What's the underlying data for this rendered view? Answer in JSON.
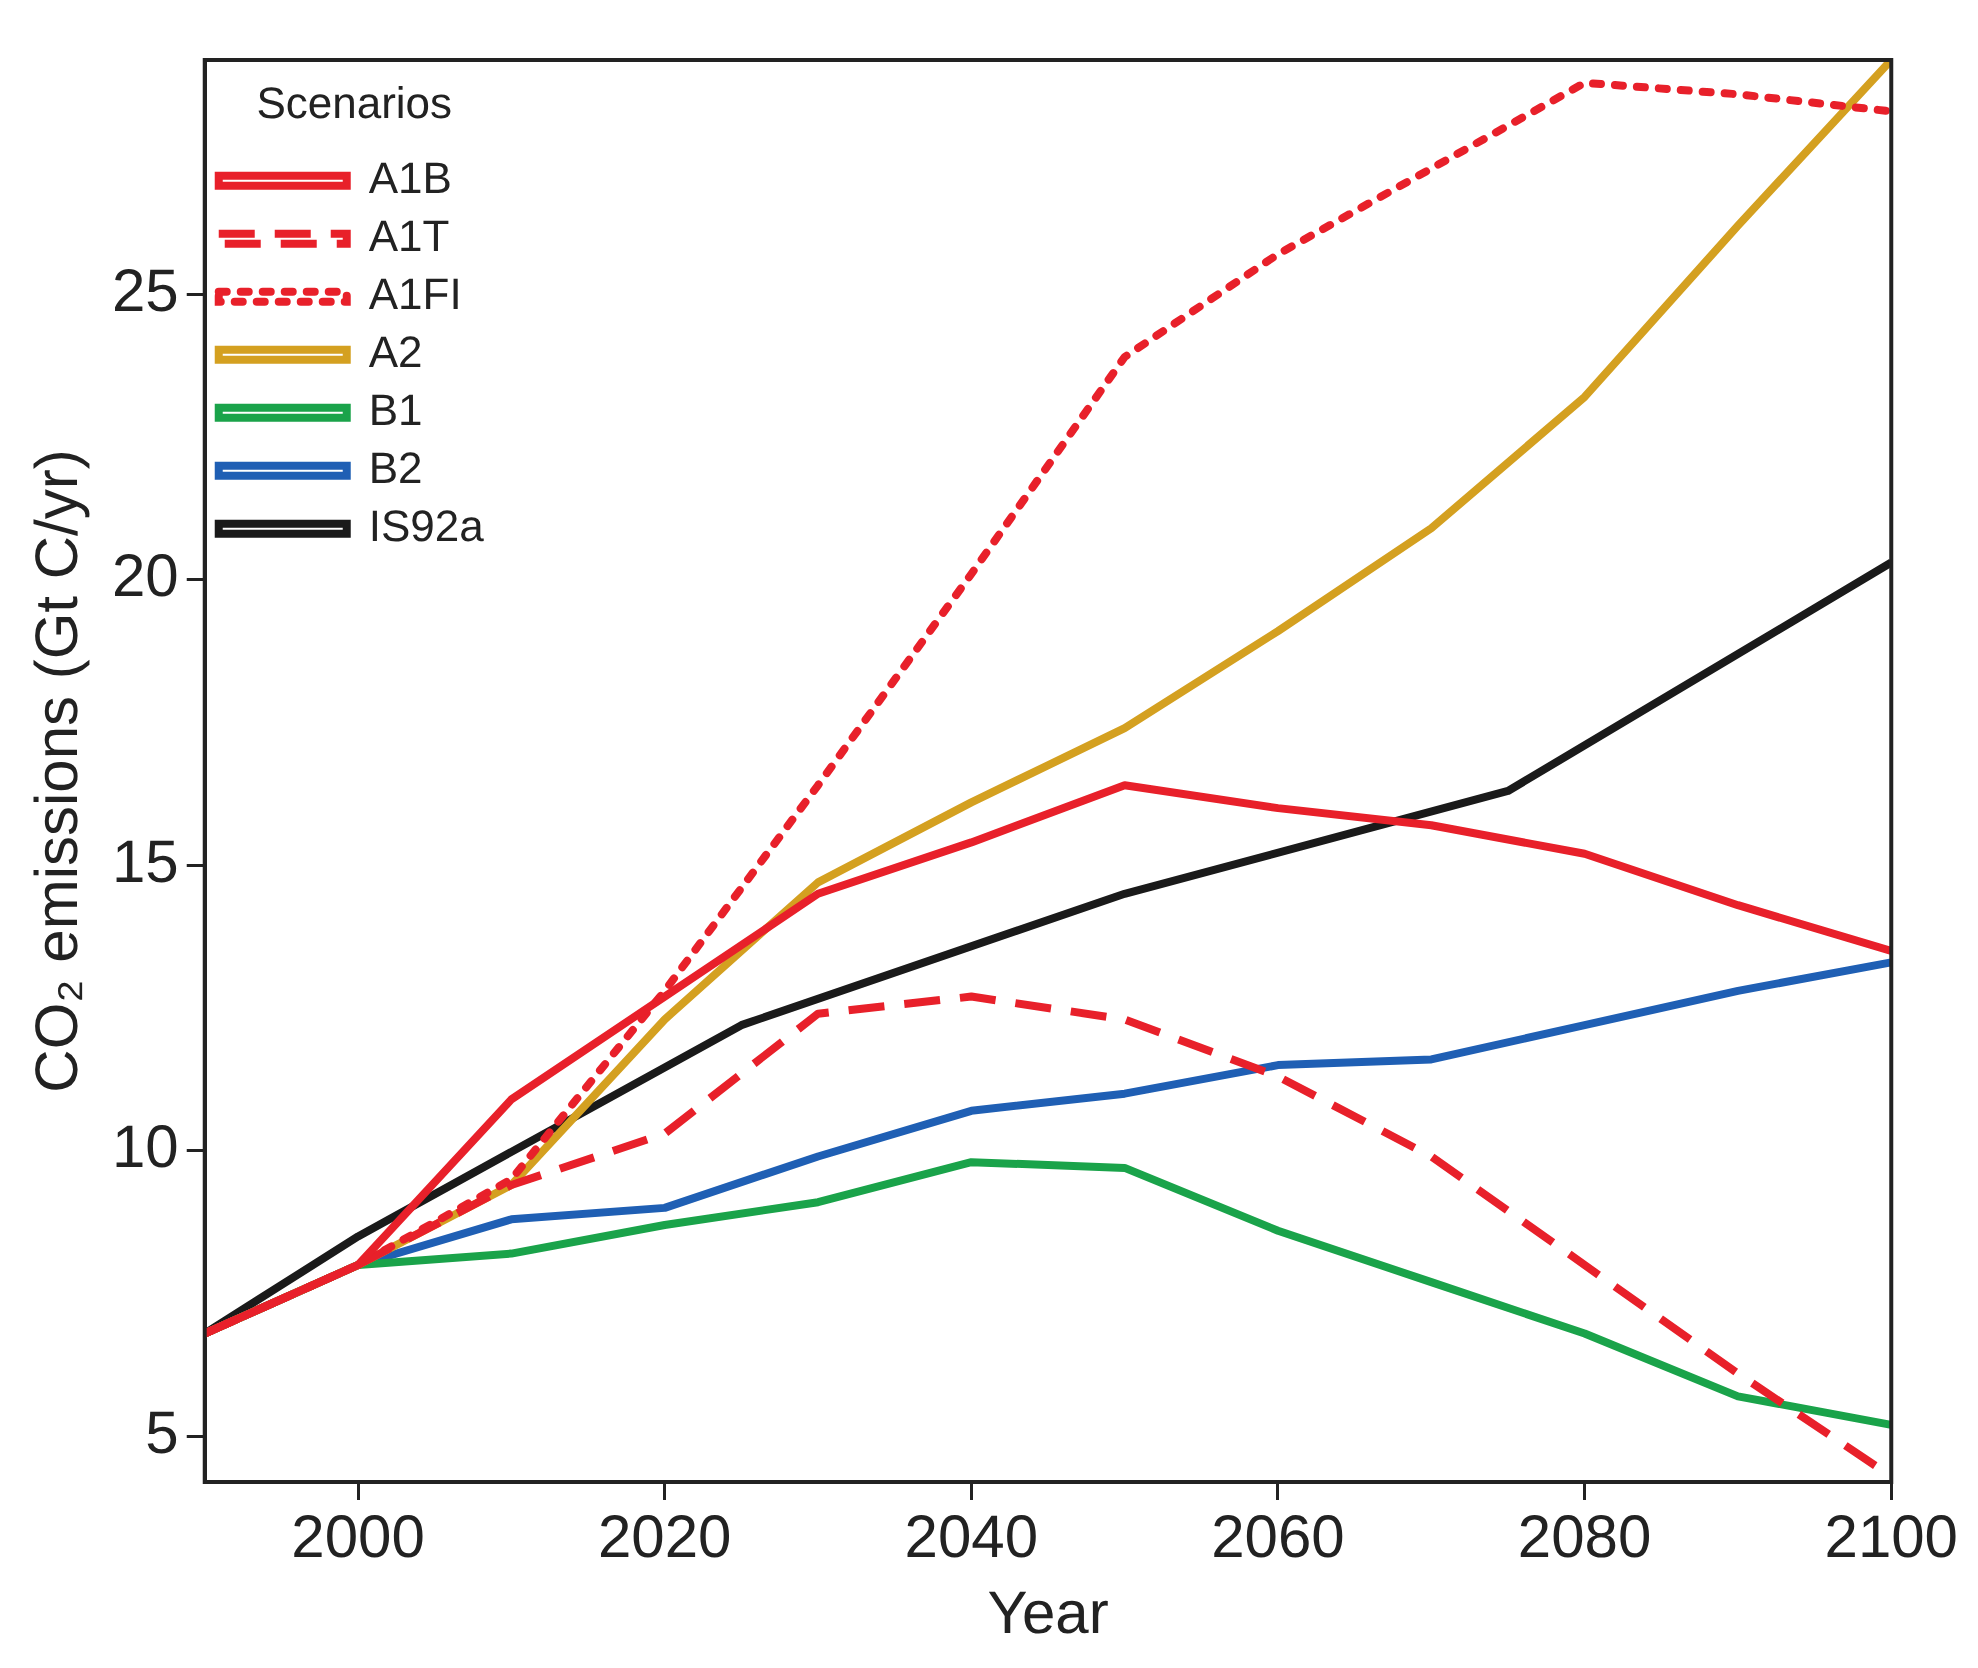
{
  "chart_data": {
    "type": "line",
    "xlabel": "Year",
    "ylabel": "CO₂ emissions (Gt C/yr)",
    "legend_title": "Scenarios",
    "legend": "top left",
    "grid": false,
    "marker": "none",
    "xlim": [
      1990,
      2100
    ],
    "xticks": [
      2000,
      2020,
      2040,
      2060,
      2080,
      2100
    ],
    "ylim": [
      4.2,
      29.1
    ],
    "yticks": [
      5,
      10,
      15,
      20,
      25
    ],
    "series": [
      {
        "name": "A1B",
        "color": "#e8202a",
        "line_style": "solid",
        "x": [
          1990,
          2000,
          2010,
          2020,
          2030,
          2040,
          2050,
          2060,
          2070,
          2080,
          2090,
          2100
        ],
        "values": [
          6.8,
          8.0,
          10.9,
          12.7,
          14.5,
          15.4,
          16.4,
          16.0,
          15.7,
          15.2,
          14.3,
          13.5
        ]
      },
      {
        "name": "A1T",
        "color": "#e8202a",
        "line_style": "dashed",
        "x": [
          1990,
          2000,
          2010,
          2020,
          2030,
          2040,
          2050,
          2060,
          2070,
          2080,
          2090,
          2100
        ],
        "values": [
          6.8,
          8.0,
          9.4,
          10.3,
          12.4,
          12.7,
          12.3,
          11.3,
          9.9,
          8.0,
          6.1,
          4.3
        ]
      },
      {
        "name": "A1FI",
        "color": "#e8202a",
        "line_style": "dotted",
        "x": [
          1990,
          2000,
          2010,
          2020,
          2030,
          2040,
          2050,
          2060,
          2070,
          2080,
          2090,
          2100
        ],
        "values": [
          6.8,
          8.0,
          9.5,
          12.8,
          16.4,
          20.1,
          23.9,
          25.7,
          27.2,
          28.7,
          28.5,
          28.2
        ]
      },
      {
        "name": "A2",
        "color": "#d4a020",
        "line_style": "solid",
        "x": [
          1990,
          2000,
          2010,
          2020,
          2030,
          2040,
          2050,
          2060,
          2070,
          2080,
          2090,
          2100
        ],
        "values": [
          6.8,
          8.0,
          9.4,
          12.3,
          14.7,
          16.1,
          17.4,
          19.1,
          20.9,
          23.2,
          26.2,
          29.1
        ]
      },
      {
        "name": "B1",
        "color": "#1aa34a",
        "line_style": "solid",
        "x": [
          1990,
          2000,
          2010,
          2020,
          2030,
          2040,
          2050,
          2060,
          2070,
          2080,
          2090,
          2100
        ],
        "values": [
          6.8,
          8.0,
          8.2,
          8.7,
          9.1,
          9.8,
          9.7,
          8.6,
          7.7,
          6.8,
          5.7,
          5.2
        ]
      },
      {
        "name": "B2",
        "color": "#1f5fb4",
        "line_style": "solid",
        "x": [
          1990,
          2000,
          2010,
          2020,
          2030,
          2040,
          2050,
          2060,
          2070,
          2080,
          2090,
          2100
        ],
        "values": [
          6.8,
          8.0,
          8.8,
          9.0,
          9.9,
          10.7,
          11.0,
          11.5,
          11.6,
          12.2,
          12.8,
          13.3
        ]
      },
      {
        "name": "IS92a",
        "color": "#1a1a1a",
        "line_style": "solid",
        "x": [
          1990,
          2000,
          2025,
          2050,
          2075,
          2100
        ],
        "values": [
          6.8,
          8.5,
          12.2,
          14.5,
          16.3,
          20.3
        ]
      }
    ]
  }
}
